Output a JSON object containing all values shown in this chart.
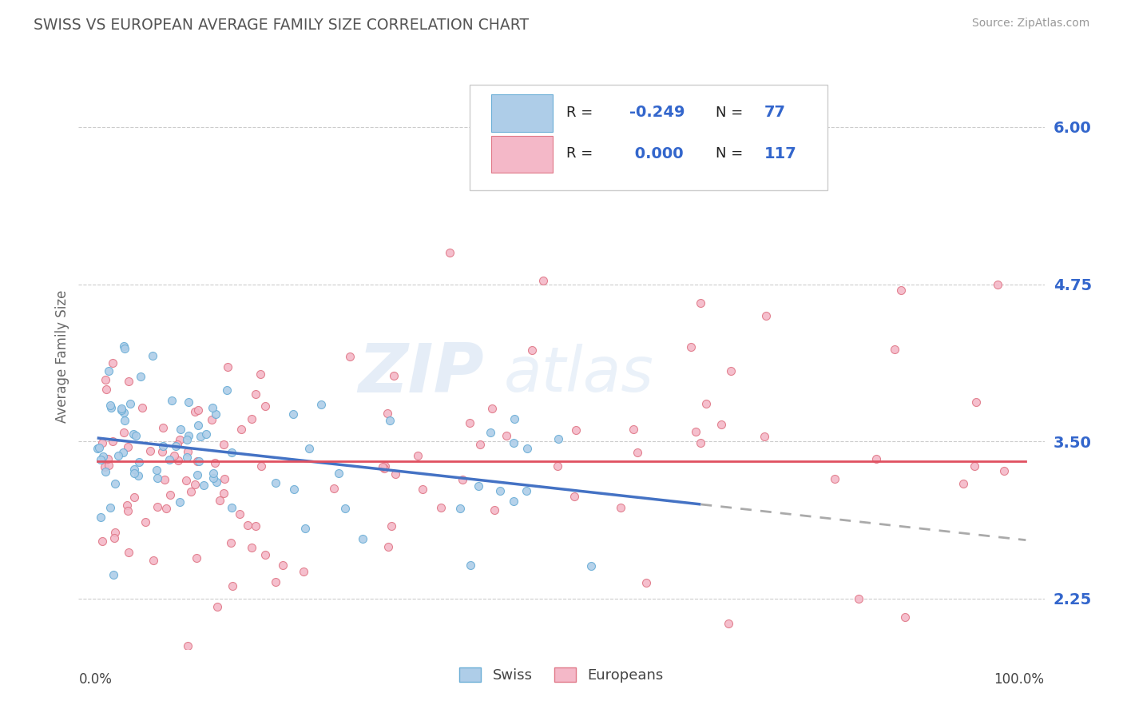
{
  "title": "SWISS VS EUROPEAN AVERAGE FAMILY SIZE CORRELATION CHART",
  "source": "Source: ZipAtlas.com",
  "ylabel": "Average Family Size",
  "yticks": [
    2.25,
    3.5,
    4.75,
    6.0
  ],
  "ytick_labels": [
    "2.25",
    "3.50",
    "4.75",
    "6.00"
  ],
  "xlim": [
    -0.02,
    1.02
  ],
  "ylim": [
    1.85,
    6.5
  ],
  "swiss_R": -0.249,
  "swiss_N": 77,
  "european_R": 0.0,
  "european_N": 117,
  "swiss_color": "#aecde8",
  "swiss_edge_color": "#6baed6",
  "european_color": "#f4b8c8",
  "european_edge_color": "#e07888",
  "trend_swiss_color": "#4472c4",
  "trend_swiss_dash_color": "#aaaaaa",
  "trend_european_color": "#e05060",
  "background_color": "#ffffff",
  "grid_color": "#cccccc",
  "title_color": "#555555",
  "label_color": "#3366cc",
  "legend_label1": "R = -0.249   N =  77",
  "legend_label2": "R =  0.000   N = 117",
  "bottom_label1": "Swiss",
  "bottom_label2": "Europeans"
}
